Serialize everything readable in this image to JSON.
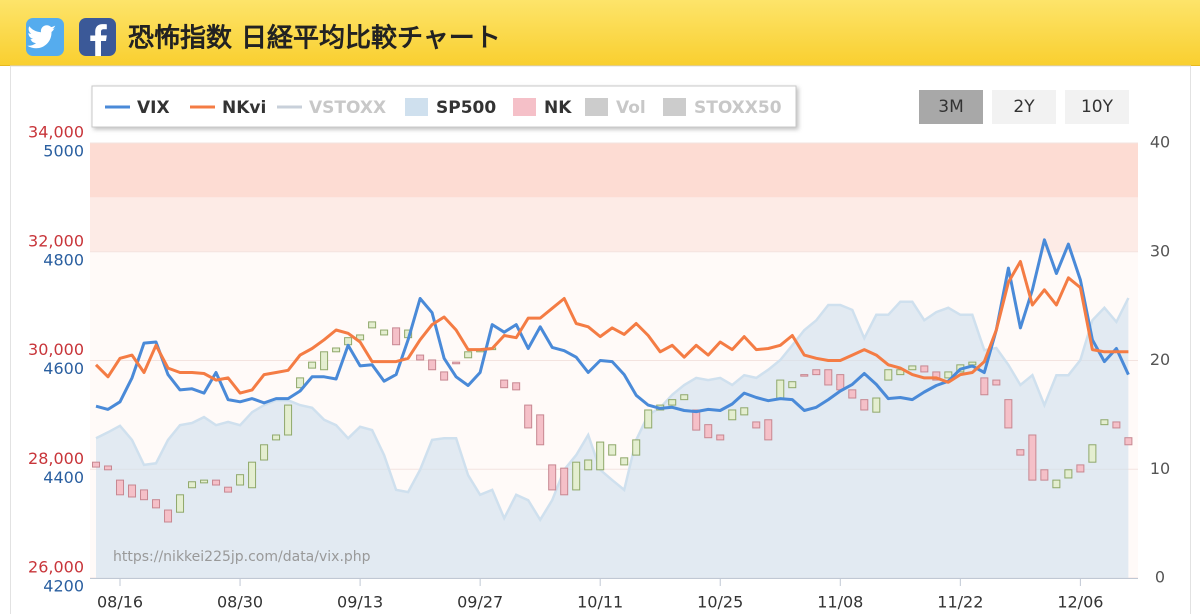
{
  "header": {
    "title": "恐怖指数 日経平均比較チャート"
  },
  "chart_data": {
    "type": "line",
    "x": [
      -2,
      -1,
      0,
      1,
      2,
      3,
      4,
      5,
      6,
      7,
      8,
      9,
      10,
      11,
      12,
      13,
      14,
      15,
      16,
      17,
      18,
      19,
      20,
      21,
      22,
      23,
      24,
      25,
      26,
      27,
      28,
      29,
      30,
      31,
      32,
      33,
      34,
      35,
      36,
      37,
      38,
      39,
      40,
      41,
      42,
      43,
      44,
      45,
      46,
      47,
      48,
      49,
      50,
      51,
      52,
      53,
      54,
      55,
      56,
      57,
      58,
      59,
      60,
      61,
      62,
      63,
      64,
      65,
      66,
      67,
      68,
      69,
      70,
      71,
      72,
      73,
      74,
      75,
      76,
      77,
      78,
      79,
      80,
      81,
      82,
      83,
      84
    ],
    "xlim": [
      -2.5,
      84.8
    ],
    "xticks": [
      {
        "value": 0,
        "label": "08/16"
      },
      {
        "value": 10,
        "label": "08/30"
      },
      {
        "value": 20,
        "label": "09/13"
      },
      {
        "value": 30,
        "label": "09/27"
      },
      {
        "value": 40,
        "label": "10/11"
      },
      {
        "value": 50,
        "label": "10/25"
      },
      {
        "value": 60,
        "label": "11/08"
      },
      {
        "value": 70,
        "label": "11/22"
      },
      {
        "value": 80,
        "label": "12/06"
      }
    ],
    "ylim": [
      26000,
      34000
    ],
    "yticks": [
      {
        "value": 26000,
        "label": "26,000"
      },
      {
        "value": 28000,
        "label": "28,000"
      },
      {
        "value": 30000,
        "label": "30,000"
      },
      {
        "value": 32000,
        "label": "32,000"
      },
      {
        "value": 34000,
        "label": "34,000"
      }
    ],
    "ytick_color": "#c8353a",
    "y3lim": [
      4200,
      5000
    ],
    "y3ticks": [
      4200,
      4400,
      4600,
      4800,
      5000
    ],
    "y3tick_color": "#2a5fa0",
    "y2lim": [
      0,
      40
    ],
    "y2ticks": [
      0,
      10,
      20,
      30,
      40
    ],
    "bands": [
      {
        "axis": "y2",
        "from": 0,
        "to": 30,
        "color": "#fffaf8"
      },
      {
        "axis": "y2",
        "from": 30,
        "to": 35,
        "color": "#fdebe6"
      },
      {
        "axis": "y2",
        "from": 35,
        "to": 40,
        "color": "#fddcd3"
      }
    ],
    "series": [
      {
        "name": "VIX",
        "type": "line",
        "color": "#4a8ad8",
        "axis": "y2",
        "values": [
          15.8,
          15.5,
          16.2,
          18.4,
          21.6,
          21.7,
          18.7,
          17.3,
          17.4,
          17.0,
          18.9,
          16.4,
          16.2,
          16.5,
          16.1,
          16.5,
          16.5,
          17.2,
          18.5,
          18.5,
          18.3,
          21.4,
          19.5,
          19.6,
          18.1,
          18.7,
          21.9,
          25.7,
          24.4,
          20.2,
          18.5,
          17.7,
          18.9,
          23.3,
          22.6,
          23.3,
          21.1,
          23.1,
          21.2,
          20.9,
          20.3,
          18.9,
          20.0,
          19.9,
          18.7,
          16.8,
          15.9,
          15.6,
          15.7,
          15.4,
          15.3,
          15.5,
          15.4,
          16.0,
          17.0,
          16.6,
          16.3,
          16.5,
          16.4,
          15.4,
          15.7,
          16.4,
          17.2,
          17.8,
          18.8,
          17.8,
          16.5,
          16.6,
          16.4,
          17.1,
          17.7,
          18.1,
          19.2,
          19.5,
          18.9,
          22.8,
          28.5,
          23.0,
          26.5,
          31.1,
          28.0,
          30.7,
          27.4,
          21.9,
          19.9,
          21.1,
          18.7
        ]
      },
      {
        "name": "NKvi",
        "type": "line",
        "color": "#f47c44",
        "axis": "y2",
        "values": [
          19.6,
          18.5,
          20.2,
          20.5,
          18.9,
          21.4,
          19.3,
          18.9,
          18.9,
          18.8,
          18.2,
          18.4,
          17.0,
          17.3,
          18.7,
          18.9,
          19.1,
          20.5,
          21.1,
          21.9,
          22.8,
          22.5,
          21.7,
          19.9,
          19.9,
          19.9,
          20.2,
          21.9,
          23.3,
          24.0,
          22.8,
          21.0,
          21.0,
          21.1,
          22.3,
          22.1,
          23.9,
          23.9,
          24.8,
          25.7,
          23.4,
          23.1,
          22.2,
          23.0,
          22.4,
          23.4,
          22.3,
          20.8,
          21.4,
          20.3,
          21.4,
          20.5,
          21.7,
          21.0,
          22.2,
          21.0,
          21.1,
          21.4,
          22.3,
          20.5,
          20.2,
          20.0,
          20.0,
          20.5,
          21.0,
          20.5,
          19.6,
          19.3,
          18.7,
          18.4,
          18.4,
          18.0,
          18.7,
          18.9,
          19.9,
          22.8,
          27.2,
          29.1,
          25.1,
          26.5,
          25.1,
          27.6,
          26.7,
          21.0,
          20.8,
          20.8,
          20.8
        ]
      },
      {
        "name": "VSTOXX",
        "type": "line",
        "color": "#c8d0da",
        "hidden": true
      },
      {
        "name": "SP500",
        "type": "area",
        "color": "#cfe0ee",
        "axis": "y3",
        "values": [
          4457,
          4468,
          4480,
          4454,
          4408,
          4411,
          4454,
          4481,
          4485,
          4496,
          4481,
          4487,
          4481,
          4505,
          4518,
          4527,
          4527,
          4518,
          4513,
          4491,
          4481,
          4457,
          4478,
          4472,
          4426,
          4362,
          4358,
          4399,
          4454,
          4457,
          4457,
          4389,
          4353,
          4362,
          4310,
          4353,
          4343,
          4307,
          4343,
          4399,
          4426,
          4463,
          4399,
          4380,
          4362,
          4454,
          4500,
          4513,
          4537,
          4555,
          4568,
          4564,
          4568,
          4555,
          4573,
          4568,
          4583,
          4601,
          4628,
          4656,
          4674,
          4702,
          4702,
          4693,
          4641,
          4684,
          4684,
          4708,
          4708,
          4674,
          4689,
          4697,
          4684,
          4684,
          4619,
          4623,
          4592,
          4555,
          4573,
          4518,
          4573,
          4573,
          4601,
          4674,
          4697,
          4671,
          4715
        ]
      },
      {
        "name": "NK",
        "type": "candlestick",
        "color": "#f5c0c8",
        "up_color": "#e4eed0",
        "axis": "y",
        "open": [
          28130,
          28060,
          27800,
          27710,
          27620,
          27440,
          27250,
          27210,
          27660,
          27750,
          27800,
          27670,
          27710,
          27660,
          28170,
          28540,
          28630,
          29500,
          29860,
          29830,
          30160,
          30290,
          30380,
          30600,
          30470,
          30600,
          30420,
          30100,
          30010,
          29790,
          29970,
          30050,
          30160,
          30200,
          29640,
          29590,
          29180,
          29000,
          28080,
          28020,
          27620,
          27990,
          27990,
          28260,
          28080,
          28260,
          28760,
          29090,
          29180,
          29280,
          29090,
          28820,
          28630,
          28910,
          29000,
          28870,
          28910,
          29310,
          29500,
          29740,
          29830,
          29830,
          29740,
          29460,
          29280,
          29050,
          29640,
          29740,
          29830,
          29900,
          29790,
          29680,
          29790,
          29920,
          29680,
          29640,
          29280,
          28360,
          28630,
          27990,
          27660,
          27840,
          28080,
          28130,
          28820,
          28870,
          28580
        ],
        "close": [
          28040,
          27990,
          27530,
          27490,
          27440,
          27290,
          27030,
          27530,
          27770,
          27800,
          27710,
          27580,
          27900,
          28130,
          28450,
          28630,
          29180,
          29680,
          29970,
          30160,
          30230,
          30420,
          30470,
          30710,
          30560,
          30290,
          30560,
          30010,
          29830,
          29640,
          29940,
          30160,
          30200,
          30230,
          29500,
          29460,
          28760,
          28450,
          27620,
          27530,
          28130,
          28170,
          28500,
          28450,
          28210,
          28540,
          29090,
          29180,
          29280,
          29370,
          28720,
          28580,
          28540,
          29090,
          29130,
          28760,
          28540,
          29640,
          29610,
          29720,
          29740,
          29550,
          29460,
          29310,
          29090,
          29310,
          29830,
          29830,
          29900,
          29790,
          29640,
          29790,
          29920,
          29970,
          29370,
          29550,
          28760,
          28260,
          27800,
          27800,
          27800,
          27990,
          27950,
          28450,
          28910,
          28760,
          28450
        ]
      },
      {
        "name": "Vol",
        "type": "bar",
        "color": "#cccccc",
        "hidden": true
      },
      {
        "name": "STOXX50",
        "type": "area",
        "color": "#cccccc",
        "hidden": true
      }
    ],
    "watermark": "https://nikkei225jp.com/data/vix.php",
    "range_buttons": [
      {
        "label": "3M",
        "active": true
      },
      {
        "label": "2Y"
      },
      {
        "label": "10Y"
      }
    ]
  }
}
